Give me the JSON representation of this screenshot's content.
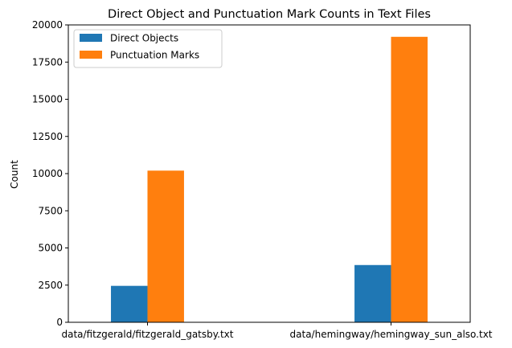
{
  "chart_data": {
    "type": "bar",
    "title": "Direct Object and Punctuation Mark Counts in Text Files",
    "xlabel": "",
    "ylabel": "Count",
    "ylim": [
      0,
      20000
    ],
    "yticks": [
      0,
      2500,
      5000,
      7500,
      10000,
      12500,
      15000,
      17500,
      20000
    ],
    "categories": [
      "data/fitzgerald/fitzgerald_gatsby.txt",
      "data/hemingway/hemingway_sun_also.txt"
    ],
    "series": [
      {
        "name": "Direct Objects",
        "color": "#1f77b4",
        "values": [
          2450,
          3850
        ]
      },
      {
        "name": "Punctuation Marks",
        "color": "#ff7f0e",
        "values": [
          10200,
          19200
        ]
      }
    ],
    "legend": "top-left",
    "grid": false
  }
}
